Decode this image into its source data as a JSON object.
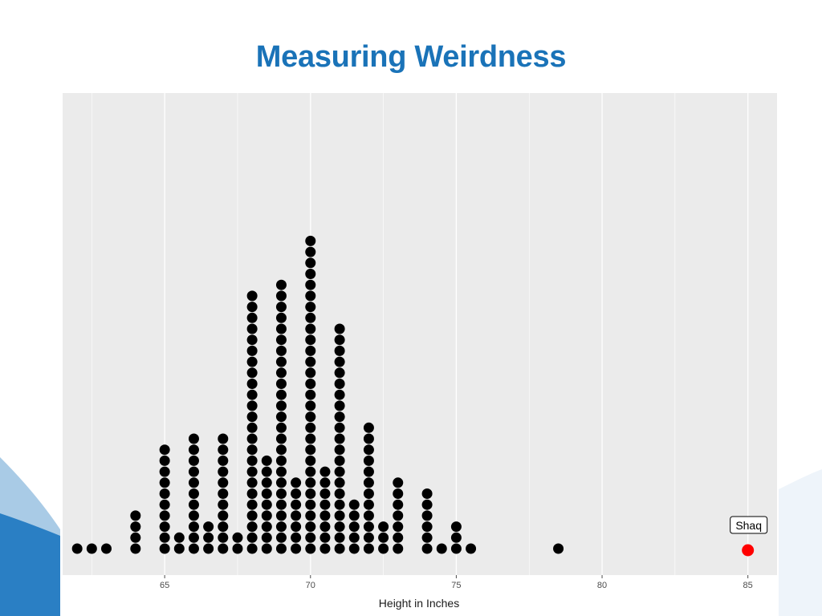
{
  "slide": {
    "title": "Measuring Weirdness"
  },
  "colors": {
    "title": "#1a73b8",
    "panel": "#ebebeb",
    "grid": "#ffffff",
    "dot": "#000000",
    "highlight": "#ff0000",
    "deco_dark": "#2a7fc4",
    "deco_light": "#a9cbe6"
  },
  "chart_data": {
    "type": "scatter",
    "subtype": "dot-plot",
    "title": "",
    "xlabel": "Height in Inches",
    "ylabel": "",
    "xlim": [
      61.5,
      86
    ],
    "x_ticks": [
      65,
      70,
      75,
      80,
      85
    ],
    "grid": true,
    "series": [
      {
        "points": [
          {
            "x": 62.0,
            "count": 1
          },
          {
            "x": 62.5,
            "count": 1
          },
          {
            "x": 63.0,
            "count": 1
          },
          {
            "x": 64.0,
            "count": 4
          },
          {
            "x": 65.0,
            "count": 10
          },
          {
            "x": 65.5,
            "count": 2
          },
          {
            "x": 66.0,
            "count": 11
          },
          {
            "x": 66.5,
            "count": 3
          },
          {
            "x": 67.0,
            "count": 11
          },
          {
            "x": 67.5,
            "count": 2
          },
          {
            "x": 68.0,
            "count": 24
          },
          {
            "x": 68.5,
            "count": 9
          },
          {
            "x": 69.0,
            "count": 25
          },
          {
            "x": 69.5,
            "count": 7
          },
          {
            "x": 70.0,
            "count": 29
          },
          {
            "x": 70.5,
            "count": 8
          },
          {
            "x": 71.0,
            "count": 21
          },
          {
            "x": 71.5,
            "count": 5
          },
          {
            "x": 72.0,
            "count": 12
          },
          {
            "x": 72.5,
            "count": 3
          },
          {
            "x": 73.0,
            "count": 7
          },
          {
            "x": 74.0,
            "count": 6
          },
          {
            "x": 74.5,
            "count": 1
          },
          {
            "x": 75.0,
            "count": 3
          },
          {
            "x": 75.5,
            "count": 1
          },
          {
            "x": 78.5,
            "count": 1
          }
        ]
      }
    ],
    "highlight": {
      "x": 85,
      "count": 1,
      "label": "Shaq"
    }
  }
}
